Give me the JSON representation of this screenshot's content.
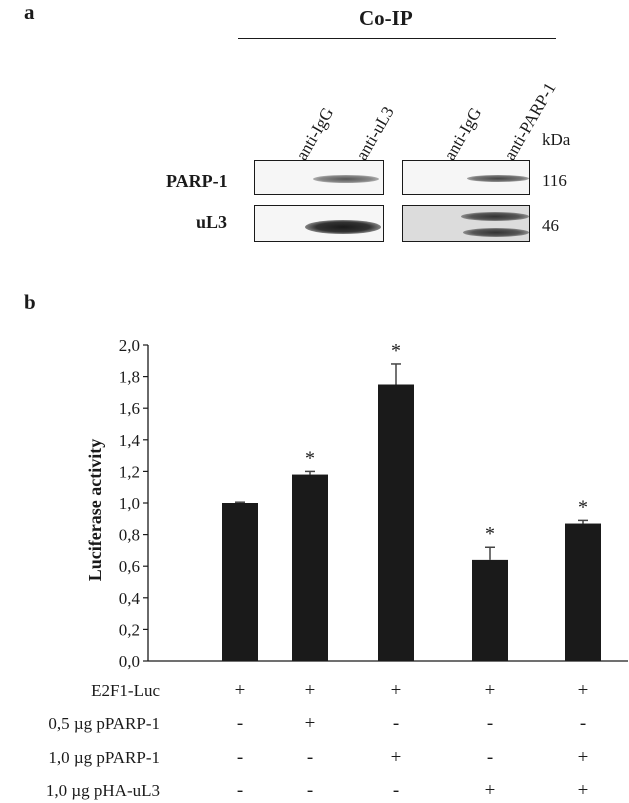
{
  "panel_a": {
    "label": "a",
    "title": "Co-IP",
    "lanes": [
      "anti-IgG",
      "anti-uL3",
      "anti-IgG",
      "anti-PARP-1"
    ],
    "kda_label": "kDa",
    "rows": [
      {
        "label": "PARP-1",
        "mw": "116"
      },
      {
        "label": "uL3",
        "mw": "46"
      }
    ]
  },
  "panel_b": {
    "label": "b"
  },
  "chart_data": {
    "type": "bar",
    "ylabel": "Luciferase activity",
    "ylim": [
      0,
      2.0
    ],
    "yticks": [
      "0,0",
      "0,2",
      "0,4",
      "0,6",
      "0,8",
      "1,0",
      "1,2",
      "1,4",
      "1,6",
      "1,8",
      "2,0"
    ],
    "values": [
      1.0,
      1.18,
      1.75,
      0.64,
      0.87
    ],
    "errors": [
      0.005,
      0.02,
      0.13,
      0.08,
      0.02
    ],
    "significance": [
      "",
      "*",
      "*",
      "*",
      "*"
    ],
    "bar_color": "#1a1a1a",
    "conditions": [
      {
        "label": "E2F1-Luc",
        "marks": [
          "+",
          "+",
          "+",
          "+",
          "+"
        ]
      },
      {
        "label": "0,5 µg pPARP-1",
        "marks": [
          "-",
          "+",
          "-",
          "-",
          "-"
        ]
      },
      {
        "label": "1,0 µg pPARP-1",
        "marks": [
          "-",
          "-",
          "+",
          "-",
          "+"
        ]
      },
      {
        "label": "1,0 µg pHA-uL3",
        "marks": [
          "-",
          "-",
          "-",
          "+",
          "+"
        ]
      }
    ]
  }
}
